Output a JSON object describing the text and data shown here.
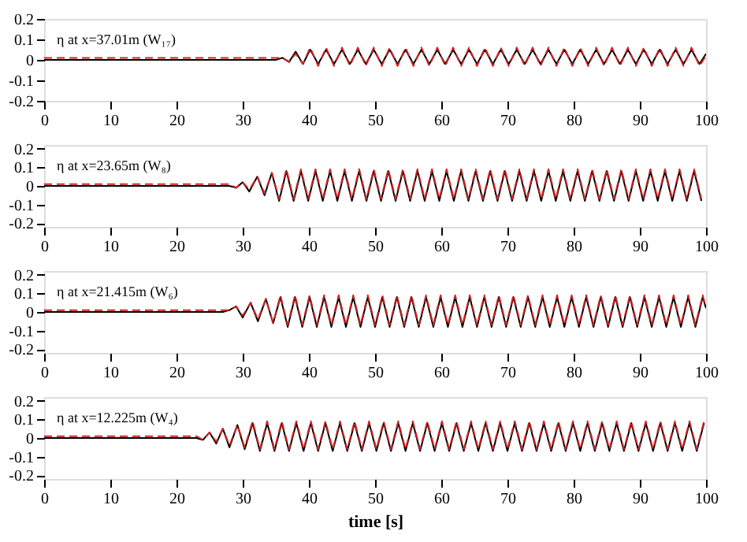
{
  "chart_data": [
    {
      "type": "line",
      "annotations": [
        "η at x=37.01m (W₁₇)"
      ],
      "xlim": [
        0,
        100
      ],
      "xticks": [
        0,
        10,
        20,
        30,
        40,
        50,
        60,
        70,
        80,
        90,
        100
      ],
      "ylim": [
        -0.2,
        0.2
      ],
      "yticks": [
        -0.2,
        -0.1,
        0,
        0.1,
        0.2
      ],
      "grid": false,
      "x": [
        0,
        35,
        36,
        37,
        38,
        39.1,
        40.2,
        41.4,
        42.6,
        43.8,
        45,
        46.2,
        47.4,
        48.6,
        49.8,
        51,
        52.2,
        53.4,
        54.6,
        55.8,
        57,
        58.2,
        59.4,
        60.6,
        61.8,
        63,
        64.2,
        65.4,
        66.6,
        67.8,
        69,
        70.2,
        71.4,
        72.6,
        73.8,
        75,
        76.2,
        77.4,
        78.6,
        79.8,
        81,
        82.2,
        83.4,
        84.6,
        85.8,
        87,
        88.2,
        89.4,
        90.6,
        91.8,
        93,
        94.2,
        95.4,
        96.6,
        97.8,
        99,
        100
      ],
      "series": [
        {
          "color": "#000000",
          "line_style": "solid",
          "values": [
            0,
            0,
            0.01,
            -0.01,
            0.04,
            -0.02,
            0.05,
            -0.02,
            0.05,
            -0.02,
            0.05,
            -0.02,
            0.05,
            -0.02,
            0.05,
            -0.02,
            0.05,
            -0.02,
            0.05,
            -0.02,
            0.05,
            -0.02,
            0.05,
            -0.02,
            0.05,
            -0.02,
            0.05,
            -0.02,
            0.05,
            -0.02,
            0.05,
            -0.02,
            0.05,
            -0.02,
            0.05,
            -0.02,
            0.05,
            -0.02,
            0.05,
            -0.02,
            0.05,
            -0.02,
            0.05,
            -0.02,
            0.05,
            -0.02,
            0.05,
            -0.02,
            0.05,
            -0.02,
            0.05,
            -0.02,
            0.05,
            -0.02,
            0.05,
            -0.02,
            0.03
          ]
        },
        {
          "color": "#d62020",
          "line_style": "dashed",
          "values": [
            0.01,
            0.01,
            0.01,
            -0.01,
            0.03,
            -0.02,
            0.06,
            -0.03,
            0.06,
            -0.03,
            0.06,
            -0.03,
            0.06,
            -0.03,
            0.06,
            -0.03,
            0.06,
            -0.03,
            0.06,
            -0.03,
            0.06,
            -0.03,
            0.06,
            -0.03,
            0.06,
            -0.03,
            0.06,
            -0.03,
            0.06,
            -0.03,
            0.06,
            -0.03,
            0.06,
            -0.03,
            0.06,
            -0.03,
            0.06,
            -0.03,
            0.06,
            -0.03,
            0.06,
            -0.03,
            0.06,
            -0.03,
            0.06,
            -0.03,
            0.06,
            -0.03,
            0.06,
            -0.03,
            0.06,
            -0.03,
            0.06,
            -0.03,
            0.06,
            -0.03,
            0.02
          ]
        }
      ]
    },
    {
      "type": "line",
      "annotations": [
        "η at x=23.65m (W₈)"
      ],
      "xlim": [
        0,
        100
      ],
      "xticks": [
        0,
        10,
        20,
        30,
        40,
        50,
        60,
        70,
        80,
        90,
        100
      ],
      "ylim": [
        -0.22,
        0.22
      ],
      "yticks": [
        -0.2,
        -0.1,
        0,
        0.1,
        0.2
      ],
      "grid": false,
      "x": [
        0,
        28,
        29,
        30,
        31,
        32.2,
        33.3,
        34.4,
        35.5,
        36.6,
        37.7,
        38.8,
        39.9,
        41,
        42.1,
        43.2,
        44.3,
        45.4,
        46.5,
        47.6,
        48.7,
        49.8,
        50.9,
        52,
        53.1,
        54.2,
        55.3,
        56.4,
        57.5,
        58.6,
        59.7,
        60.8,
        61.9,
        63,
        64.1,
        65.2,
        66.3,
        67.4,
        68.5,
        69.6,
        70.7,
        71.8,
        72.9,
        74,
        75.1,
        76.2,
        77.3,
        78.4,
        79.5,
        80.6,
        81.7,
        82.8,
        83.9,
        85,
        86.1,
        87.2,
        88.3,
        89.4,
        90.5,
        91.6,
        92.7,
        93.8,
        94.9,
        96,
        97.1,
        98.2,
        99.3
      ],
      "series": [
        {
          "color": "#000000",
          "line_style": "solid",
          "values": [
            0,
            0,
            -0.01,
            0.02,
            -0.03,
            0.05,
            -0.05,
            0.07,
            -0.08,
            0.08,
            -0.08,
            0.08,
            -0.08,
            0.08,
            -0.08,
            0.08,
            -0.08,
            0.08,
            -0.08,
            0.08,
            -0.08,
            0.08,
            -0.08,
            0.08,
            -0.08,
            0.08,
            -0.08,
            0.08,
            -0.08,
            0.08,
            -0.08,
            0.08,
            -0.08,
            0.08,
            -0.08,
            0.08,
            -0.08,
            0.08,
            -0.08,
            0.08,
            -0.08,
            0.08,
            -0.08,
            0.08,
            -0.08,
            0.08,
            -0.08,
            0.08,
            -0.08,
            0.08,
            -0.08,
            0.08,
            -0.08,
            0.08,
            -0.08,
            0.08,
            -0.08,
            0.08,
            -0.08,
            0.08,
            -0.08,
            0.08,
            -0.08,
            0.08,
            -0.08,
            0.08,
            -0.08
          ]
        },
        {
          "color": "#d62020",
          "line_style": "dashed",
          "values": [
            0.01,
            0.01,
            -0.01,
            0.02,
            -0.02,
            0.05,
            -0.04,
            0.07,
            -0.07,
            0.09,
            -0.07,
            0.09,
            -0.07,
            0.09,
            -0.07,
            0.09,
            -0.07,
            0.09,
            -0.07,
            0.09,
            -0.07,
            0.09,
            -0.07,
            0.09,
            -0.07,
            0.09,
            -0.07,
            0.09,
            -0.07,
            0.09,
            -0.07,
            0.09,
            -0.07,
            0.09,
            -0.07,
            0.09,
            -0.07,
            0.09,
            -0.07,
            0.09,
            -0.07,
            0.09,
            -0.07,
            0.09,
            -0.07,
            0.09,
            -0.07,
            0.09,
            -0.07,
            0.09,
            -0.07,
            0.09,
            -0.07,
            0.09,
            -0.07,
            0.09,
            -0.07,
            0.09,
            -0.07,
            0.09,
            -0.07,
            0.09,
            -0.07,
            0.09,
            -0.07,
            0.09,
            -0.07
          ]
        }
      ]
    },
    {
      "type": "line",
      "annotations": [
        "η at x=21.415m (W₆)"
      ],
      "xlim": [
        0,
        100
      ],
      "xticks": [
        0,
        10,
        20,
        30,
        40,
        50,
        60,
        70,
        80,
        90,
        100
      ],
      "ylim": [
        -0.22,
        0.22
      ],
      "yticks": [
        -0.2,
        -0.1,
        0,
        0.1,
        0.2
      ],
      "grid": false,
      "x": [
        0,
        27,
        28,
        29,
        30,
        31.2,
        32.3,
        33.5,
        34.6,
        35.7,
        36.8,
        37.9,
        39,
        40.1,
        41.2,
        42.3,
        43.4,
        44.5,
        45.6,
        46.7,
        47.8,
        48.9,
        50,
        51.1,
        52.2,
        53.3,
        54.4,
        55.5,
        56.6,
        57.7,
        58.8,
        59.9,
        61,
        62.1,
        63.2,
        64.3,
        65.4,
        66.5,
        67.6,
        68.7,
        69.8,
        70.9,
        72,
        73.1,
        74.2,
        75.3,
        76.4,
        77.5,
        78.6,
        79.7,
        80.8,
        81.9,
        83,
        84.1,
        85.2,
        86.3,
        87.4,
        88.5,
        89.6,
        90.7,
        91.8,
        92.9,
        94,
        95.1,
        96.2,
        97.3,
        98.4,
        99.5,
        100
      ],
      "series": [
        {
          "color": "#000000",
          "line_style": "solid",
          "values": [
            0,
            0,
            0.01,
            0.03,
            -0.03,
            0.05,
            -0.05,
            0.07,
            -0.06,
            0.08,
            -0.08,
            0.08,
            -0.08,
            0.08,
            -0.08,
            0.08,
            -0.08,
            0.08,
            -0.08,
            0.08,
            -0.08,
            0.08,
            -0.08,
            0.08,
            -0.08,
            0.08,
            -0.08,
            0.08,
            -0.08,
            0.08,
            -0.08,
            0.08,
            -0.08,
            0.08,
            -0.08,
            0.08,
            -0.08,
            0.08,
            -0.08,
            0.08,
            -0.08,
            0.08,
            -0.08,
            0.08,
            -0.08,
            0.08,
            -0.08,
            0.08,
            -0.08,
            0.08,
            -0.08,
            0.08,
            -0.08,
            0.08,
            -0.08,
            0.08,
            -0.08,
            0.08,
            -0.08,
            0.08,
            -0.08,
            0.08,
            -0.08,
            0.08,
            -0.08,
            0.08,
            -0.08,
            0.08,
            0.02
          ]
        },
        {
          "color": "#d62020",
          "line_style": "dashed",
          "values": [
            0.01,
            0.01,
            0.01,
            0.03,
            -0.02,
            0.05,
            -0.04,
            0.07,
            -0.06,
            0.09,
            -0.07,
            0.09,
            -0.07,
            0.09,
            -0.07,
            0.09,
            -0.07,
            0.09,
            -0.07,
            0.09,
            -0.07,
            0.09,
            -0.07,
            0.09,
            -0.07,
            0.09,
            -0.07,
            0.09,
            -0.07,
            0.09,
            -0.07,
            0.09,
            -0.07,
            0.09,
            -0.07,
            0.09,
            -0.07,
            0.09,
            -0.07,
            0.09,
            -0.07,
            0.09,
            -0.07,
            0.09,
            -0.07,
            0.09,
            -0.07,
            0.09,
            -0.07,
            0.09,
            -0.07,
            0.09,
            -0.07,
            0.09,
            -0.07,
            0.09,
            -0.07,
            0.09,
            -0.07,
            0.09,
            -0.07,
            0.09,
            -0.07,
            0.09,
            -0.07,
            0.09,
            -0.07,
            0.09,
            0.02
          ]
        }
      ]
    },
    {
      "type": "line",
      "annotations": [
        "η at x=12.225m (W₄)"
      ],
      "xlabel": "time [s]",
      "xlim": [
        0,
        100
      ],
      "xticks": [
        0,
        10,
        20,
        30,
        40,
        50,
        60,
        70,
        80,
        90,
        100
      ],
      "ylim": [
        -0.22,
        0.22
      ],
      "yticks": [
        -0.2,
        -0.1,
        0,
        0.1,
        0.2
      ],
      "grid": false,
      "x": [
        0,
        23,
        24,
        25,
        26,
        27,
        28,
        29.2,
        30.3,
        31.5,
        32.6,
        33.7,
        34.8,
        35.9,
        37,
        38.1,
        39.2,
        40.3,
        41.4,
        42.5,
        43.6,
        44.7,
        45.8,
        46.9,
        48,
        49.1,
        50.2,
        51.3,
        52.4,
        53.5,
        54.6,
        55.7,
        56.8,
        57.9,
        59,
        60.1,
        61.2,
        62.3,
        63.4,
        64.5,
        65.6,
        66.7,
        67.8,
        68.9,
        70,
        71.1,
        72.2,
        73.3,
        74.4,
        75.5,
        76.6,
        77.7,
        78.8,
        79.9,
        81,
        82.1,
        83.2,
        84.3,
        85.4,
        86.5,
        87.6,
        88.7,
        89.8,
        90.9,
        92,
        93.1,
        94.2,
        95.3,
        96.4,
        97.5,
        98.6,
        99.7
      ],
      "series": [
        {
          "color": "#000000",
          "line_style": "solid",
          "values": [
            0,
            0,
            -0.01,
            0.03,
            -0.03,
            0.05,
            -0.05,
            0.07,
            -0.06,
            0.08,
            -0.07,
            0.08,
            -0.07,
            0.08,
            -0.07,
            0.08,
            -0.07,
            0.08,
            -0.07,
            0.08,
            -0.07,
            0.08,
            -0.07,
            0.08,
            -0.07,
            0.08,
            -0.07,
            0.08,
            -0.07,
            0.08,
            -0.07,
            0.08,
            -0.07,
            0.08,
            -0.07,
            0.08,
            -0.07,
            0.08,
            -0.07,
            0.08,
            -0.07,
            0.08,
            -0.07,
            0.08,
            -0.07,
            0.08,
            -0.07,
            0.08,
            -0.07,
            0.08,
            -0.07,
            0.08,
            -0.07,
            0.08,
            -0.07,
            0.08,
            -0.07,
            0.08,
            -0.07,
            0.08,
            -0.07,
            0.08,
            -0.07,
            0.08,
            -0.07,
            0.08,
            -0.07,
            0.08,
            -0.07,
            0.08,
            -0.07,
            0.08
          ]
        },
        {
          "color": "#d62020",
          "line_style": "dashed",
          "values": [
            0.01,
            0.01,
            -0.01,
            0.03,
            -0.02,
            0.05,
            -0.04,
            0.07,
            -0.05,
            0.09,
            -0.06,
            0.09,
            -0.06,
            0.09,
            -0.06,
            0.09,
            -0.06,
            0.09,
            -0.06,
            0.09,
            -0.06,
            0.09,
            -0.06,
            0.09,
            -0.06,
            0.09,
            -0.06,
            0.09,
            -0.06,
            0.09,
            -0.06,
            0.09,
            -0.06,
            0.09,
            -0.06,
            0.09,
            -0.06,
            0.09,
            -0.06,
            0.09,
            -0.06,
            0.09,
            -0.06,
            0.09,
            -0.06,
            0.09,
            -0.06,
            0.09,
            -0.06,
            0.09,
            -0.06,
            0.09,
            -0.06,
            0.09,
            -0.06,
            0.09,
            -0.06,
            0.09,
            -0.06,
            0.09,
            -0.06,
            0.09,
            -0.06,
            0.09,
            -0.06,
            0.09,
            -0.06,
            0.09,
            -0.06,
            0.09,
            -0.06,
            0.09
          ]
        }
      ]
    }
  ]
}
